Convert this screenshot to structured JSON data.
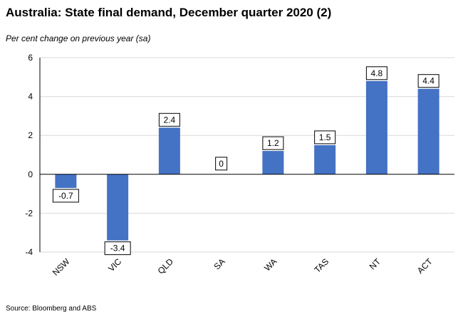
{
  "chart_data": {
    "type": "bar",
    "title": "Australia: State final demand, December quarter 2020 (2)",
    "subtitle": "Per cent change on previous year (sa)",
    "xlabel": "",
    "ylabel": "",
    "source": "Source: Bloomberg and ABS",
    "categories": [
      "NSW",
      "VIC",
      "QLD",
      "SA",
      "WA",
      "TAS",
      "NT",
      "ACT"
    ],
    "values": [
      -0.7,
      -3.4,
      2.4,
      0,
      1.2,
      1.5,
      4.8,
      4.4
    ],
    "data_labels": [
      "-0.7",
      "-3.4",
      "2.4",
      "0",
      "1.2",
      "1.5",
      "4.8",
      "4.4"
    ],
    "ylim": [
      -4,
      6
    ],
    "yticks": [
      -4,
      -2,
      0,
      2,
      4,
      6
    ],
    "ytick_labels": [
      "-4",
      "-2",
      "0",
      "2",
      "4",
      "6"
    ],
    "grid": true,
    "legend": "none",
    "bar_color": "#4472C4",
    "grid_color": "#D9D9D9"
  }
}
